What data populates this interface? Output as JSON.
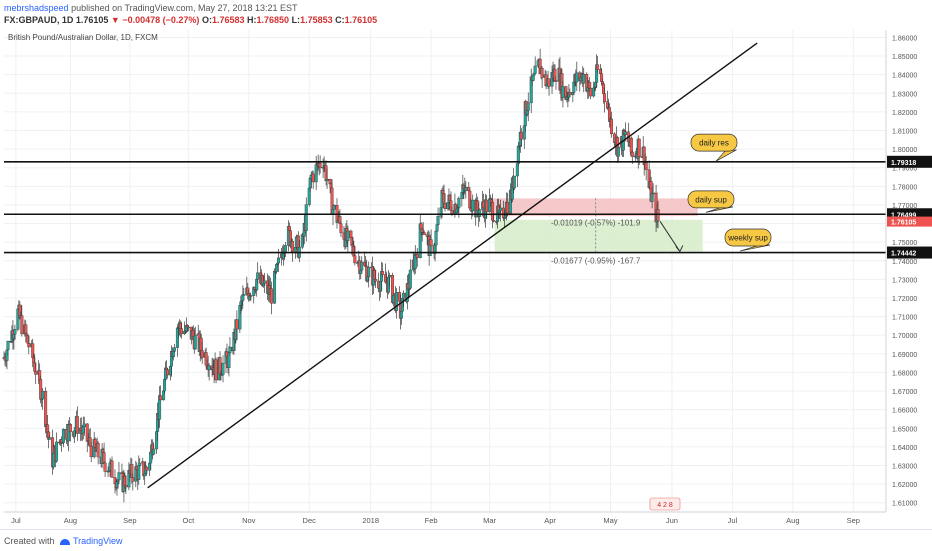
{
  "header": {
    "author": "mebrshadspeed",
    "published_text": "published on TradingView.com, May 27, 2018 13:21 EST",
    "symbol": "FX:GBPAUD, 1D",
    "last": "1.76105",
    "change": "−0.00478 (−0.27%)",
    "o_label": "O:",
    "o_value": "1.76583",
    "h_label": "H:",
    "h_value": "1.76850",
    "l_label": "L:",
    "l_value": "1.75853",
    "c_label": "C:",
    "c_value": "1.76105"
  },
  "chart_title": "British Pound/Australian Dollar, 1D, FXCM",
  "footer": {
    "created": "Created with",
    "brand": "TradingView"
  },
  "colors": {
    "up": "#26a69a",
    "down": "#ef5350",
    "candle_outline": "#3a3a3a",
    "grid": "#eef0f4",
    "axis_text": "#555555",
    "line": "#111111",
    "callout": "#f7c843",
    "sup_zone": "#f4c2c4",
    "target_zone": "#d6ecc9"
  },
  "chart_data": {
    "type": "candlestick",
    "title": "British Pound/Australian Dollar, 1D, FXCM",
    "y_ticks": [
      "1.86000",
      "1.85000",
      "1.84000",
      "1.83000",
      "1.82000",
      "1.81000",
      "1.80000",
      "1.79000",
      "1.78000",
      "1.77000",
      "1.76000",
      "1.75000",
      "1.74000",
      "1.73000",
      "1.72000",
      "1.71000",
      "1.70000",
      "1.69000",
      "1.68000",
      "1.67000",
      "1.66000",
      "1.65000",
      "1.64000",
      "1.63000",
      "1.62000",
      "1.61000"
    ],
    "ylim": [
      1.605,
      1.864
    ],
    "x_labels": [
      "Jul",
      "Aug",
      "Sep",
      "Oct",
      "Nov",
      "Dec",
      "2018",
      "Feb",
      "Mar",
      "Apr",
      "May",
      "Jun",
      "Jul",
      "Aug",
      "Sep"
    ],
    "x_label_day_index": [
      12,
      67,
      127,
      186,
      247,
      308,
      370,
      431,
      490,
      551,
      612,
      674,
      735,
      796,
      857
    ],
    "x_range_days": [
      0,
      890
    ],
    "close_path": [
      [
        0,
        1.688
      ],
      [
        14,
        1.712
      ],
      [
        28,
        1.69
      ],
      [
        40,
        1.665
      ],
      [
        48,
        1.632
      ],
      [
        60,
        1.648
      ],
      [
        75,
        1.652
      ],
      [
        88,
        1.64
      ],
      [
        105,
        1.63
      ],
      [
        118,
        1.62
      ],
      [
        130,
        1.626
      ],
      [
        145,
        1.628
      ],
      [
        160,
        1.67
      ],
      [
        175,
        1.705
      ],
      [
        190,
        1.7
      ],
      [
        205,
        1.688
      ],
      [
        215,
        1.681
      ],
      [
        228,
        1.688
      ],
      [
        240,
        1.718
      ],
      [
        255,
        1.73
      ],
      [
        270,
        1.722
      ],
      [
        285,
        1.755
      ],
      [
        300,
        1.745
      ],
      [
        310,
        1.785
      ],
      [
        322,
        1.795
      ],
      [
        332,
        1.768
      ],
      [
        345,
        1.752
      ],
      [
        360,
        1.738
      ],
      [
        375,
        1.73
      ],
      [
        388,
        1.728
      ],
      [
        400,
        1.712
      ],
      [
        410,
        1.73
      ],
      [
        422,
        1.76
      ],
      [
        432,
        1.742
      ],
      [
        442,
        1.773
      ],
      [
        455,
        1.77
      ],
      [
        465,
        1.778
      ],
      [
        477,
        1.767
      ],
      [
        490,
        1.77
      ],
      [
        500,
        1.762
      ],
      [
        512,
        1.776
      ],
      [
        520,
        1.805
      ],
      [
        530,
        1.83
      ],
      [
        540,
        1.845
      ],
      [
        548,
        1.835
      ],
      [
        558,
        1.843
      ],
      [
        566,
        1.828
      ],
      [
        575,
        1.836
      ],
      [
        585,
        1.84
      ],
      [
        593,
        1.828
      ],
      [
        600,
        1.844
      ],
      [
        606,
        1.83
      ],
      [
        612,
        1.815
      ],
      [
        620,
        1.8
      ],
      [
        628,
        1.808
      ],
      [
        634,
        1.796
      ],
      [
        640,
        1.802
      ],
      [
        646,
        1.797
      ],
      [
        650,
        1.781
      ],
      [
        655,
        1.772
      ],
      [
        660,
        1.761
      ]
    ],
    "levels": [
      {
        "name": "daily res",
        "value": 1.79318,
        "label": "1.79318"
      },
      {
        "name": "daily sup",
        "value": 1.76499,
        "label": "1.76499"
      },
      {
        "name": "weekly sup",
        "value": 1.74442,
        "label": "1.74442"
      }
    ],
    "last_price": {
      "value": 1.76105,
      "label": "1.76105"
    },
    "callouts": [
      "daily res",
      "daily sup",
      "weekly sup"
    ],
    "trendline": {
      "from": [
        145,
        1.618
      ],
      "to": [
        760,
        1.857
      ]
    },
    "sup_zone": {
      "from_day": 490,
      "to_day": 700,
      "top": 1.7735,
      "bottom": 1.764
    },
    "target_zone": {
      "from_day": 495,
      "to_day": 705,
      "top": 1.762,
      "bottom": 1.745
    },
    "measure_labels": [
      "-0.01019 (-0.57%) -101.9",
      "-0.01677 (-0.95%) -167.7"
    ],
    "projection_arrow": {
      "from": [
        662,
        1.7612
      ],
      "to": [
        682,
        1.745
      ]
    },
    "badge": "4 2 8"
  }
}
